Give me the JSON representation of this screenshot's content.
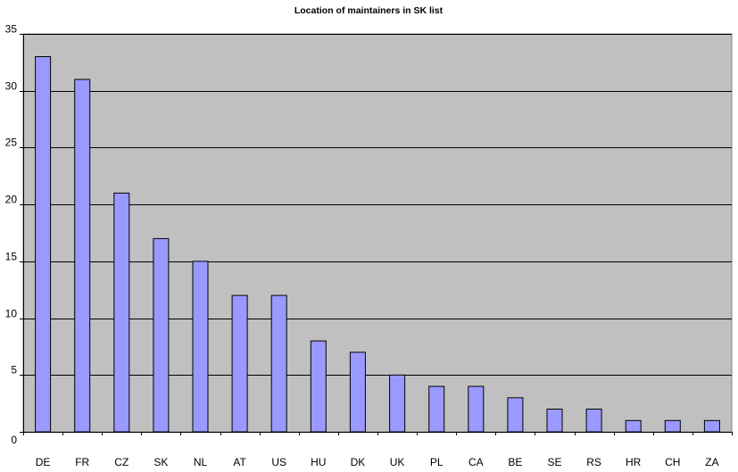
{
  "chart_data": {
    "type": "bar",
    "title": "Location of maintainers in SK list",
    "xlabel": "",
    "ylabel": "",
    "categories": [
      "DE",
      "FR",
      "CZ",
      "SK",
      "NL",
      "AT",
      "US",
      "HU",
      "DK",
      "UK",
      "PL",
      "CA",
      "BE",
      "SE",
      "RS",
      "HR",
      "CH",
      "ZA"
    ],
    "values": [
      33,
      31,
      21,
      17,
      15,
      12,
      12,
      8,
      7,
      5,
      4,
      4,
      3,
      2,
      2,
      1,
      1,
      1
    ],
    "ylim": [
      0,
      35
    ],
    "yticks": [
      0,
      5,
      10,
      15,
      20,
      25,
      30,
      35
    ],
    "grid": "horizontal major gridlines",
    "legend": "none",
    "colors": {
      "plot_background": "#c0c0c0",
      "bar_fill": "#9999ff",
      "bar_stroke": "#000000",
      "gridline": "#000000",
      "page_background": "#ffffff"
    }
  }
}
